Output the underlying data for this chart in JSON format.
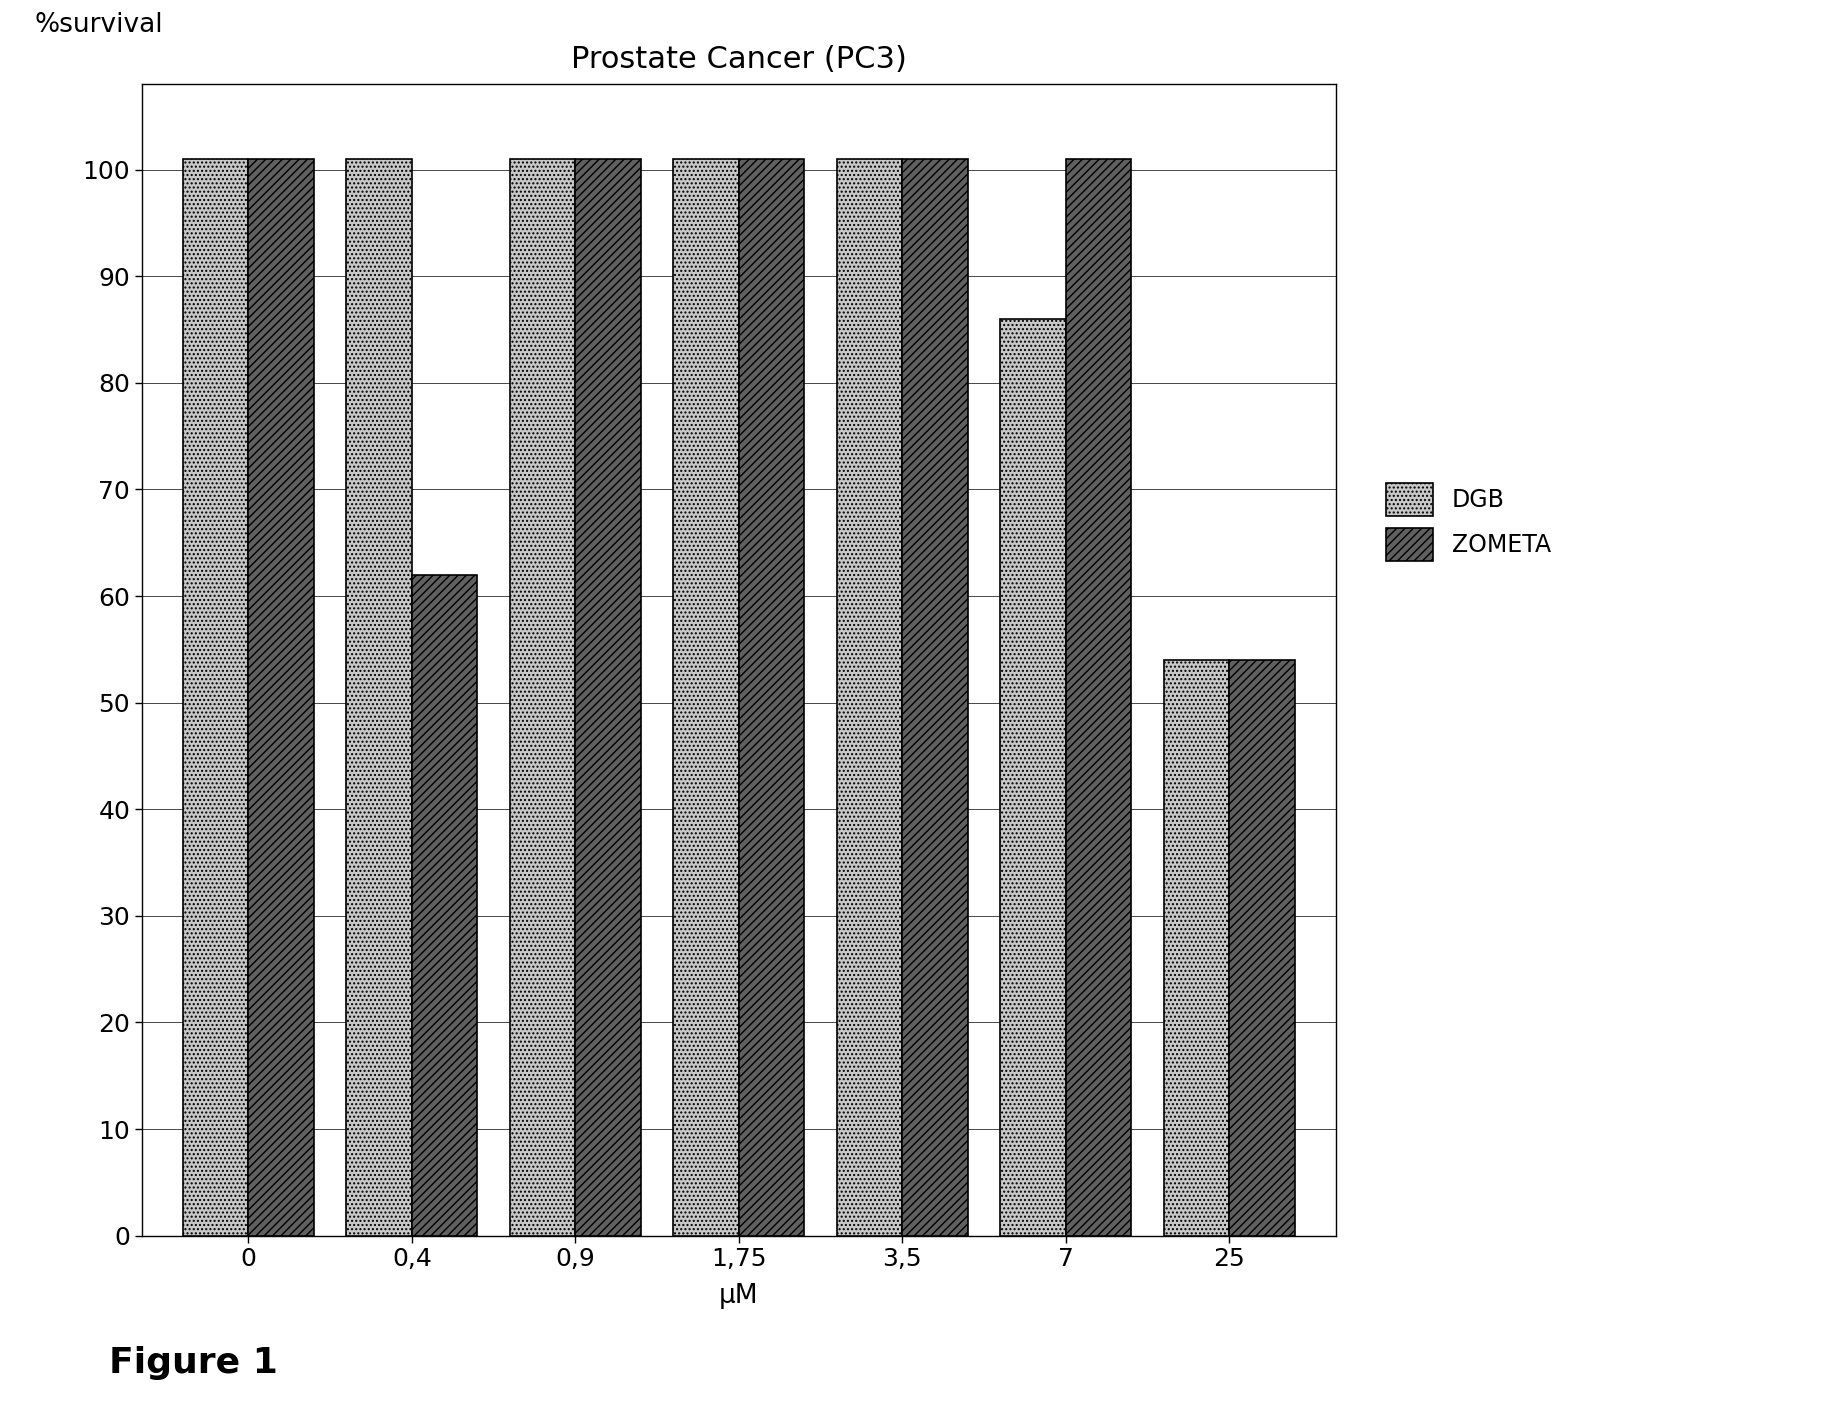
{
  "title": "Prostate Cancer (PC3)",
  "ylabel_text": "%survival",
  "xlabel": "μM",
  "categories": [
    "0",
    "0,4",
    "0,9",
    "1,75",
    "3,5",
    "7",
    "25"
  ],
  "dgb_values": [
    101,
    101,
    101,
    101,
    101,
    86,
    54
  ],
  "zometa_values": [
    101,
    62,
    101,
    101,
    101,
    101,
    54
  ],
  "ylim": [
    0,
    108
  ],
  "yticks": [
    0,
    10,
    20,
    30,
    40,
    50,
    60,
    70,
    80,
    90,
    100
  ],
  "bar_width": 0.4,
  "figure_caption": "Figure 1",
  "title_fontsize": 22,
  "label_fontsize": 19,
  "tick_fontsize": 18,
  "legend_fontsize": 17,
  "caption_fontsize": 26
}
